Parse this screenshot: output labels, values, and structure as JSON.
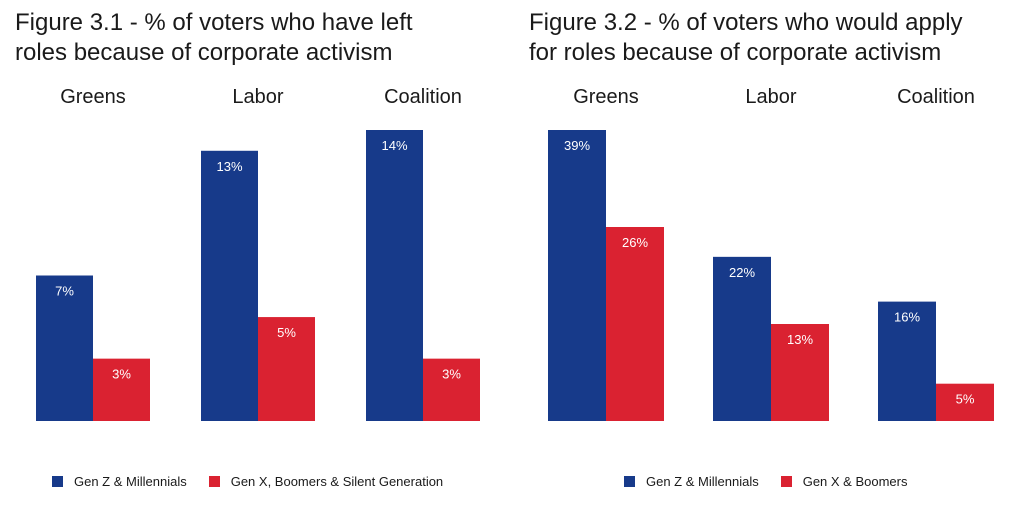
{
  "colors": {
    "series1": "#173a8a",
    "series2": "#da2231",
    "label": "#ffffff",
    "text": "#1a1a1a"
  },
  "chart_data": [
    {
      "type": "bar",
      "title": "Figure 3.1 - % of voters who have left roles because of corporate activism",
      "title_lines": [
        "Figure 3.1 - % of voters who have left",
        "roles because of corporate activism"
      ],
      "categories": [
        "Greens",
        "Labor",
        "Coalition"
      ],
      "series": [
        {
          "name": "Gen Z & Millennials",
          "values": [
            7,
            13,
            14
          ],
          "labels": [
            "7%",
            "13%",
            "14%"
          ]
        },
        {
          "name": "Gen X, Boomers & Silent Generation",
          "values": [
            3,
            5,
            3
          ],
          "labels": [
            "3%",
            "5%",
            "3%"
          ]
        }
      ],
      "ylim": [
        0,
        14
      ],
      "grid": false,
      "legend": "bottom"
    },
    {
      "type": "bar",
      "title": "Figure 3.2 - % of voters who would apply for roles because of corporate activism",
      "title_lines": [
        "Figure 3.2 - % of voters who would apply",
        "for roles because of corporate activism"
      ],
      "categories": [
        "Greens",
        "Labor",
        "Coalition"
      ],
      "series": [
        {
          "name": "Gen Z & Millennials",
          "values": [
            39,
            22,
            16
          ],
          "labels": [
            "39%",
            "22%",
            "16%"
          ]
        },
        {
          "name": "Gen X & Boomers",
          "values": [
            26,
            13,
            5
          ],
          "labels": [
            "26%",
            "13%",
            "5%"
          ]
        }
      ],
      "ylim": [
        0,
        39
      ],
      "grid": false,
      "legend": "bottom"
    }
  ]
}
